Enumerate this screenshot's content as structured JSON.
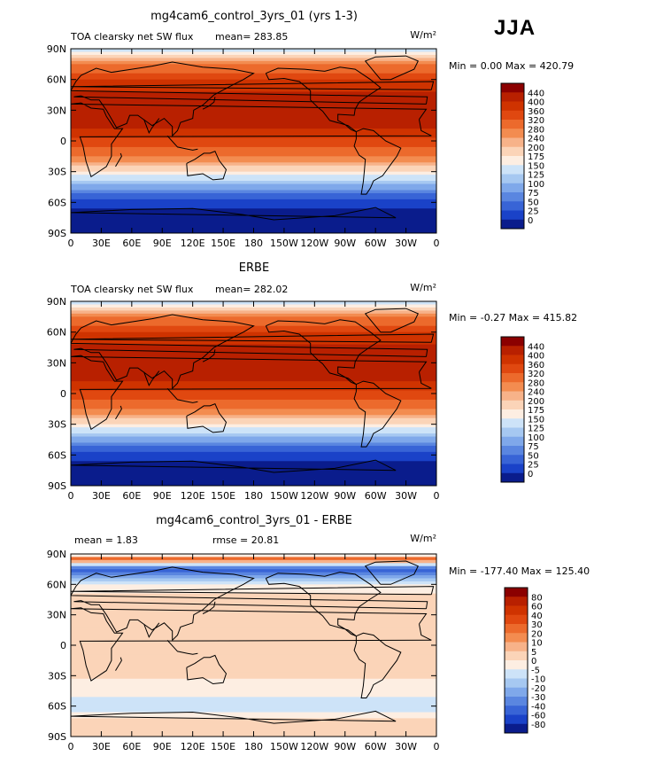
{
  "season": "JJA",
  "chart_data": [
    {
      "type": "heatmap",
      "title": "mg4cam6_control_3yrs_01 (yrs 1-3)",
      "left_label": "TOA clearsky net SW flux",
      "mean_text": "mean= 283.85",
      "units": "W/m²",
      "minmax_text": "Min =    0.00 Max = 420.79",
      "lat_ticks": [
        "90N",
        "60N",
        "30N",
        "0",
        "30S",
        "60S",
        "90S"
      ],
      "lon_ticks": [
        "0",
        "30E",
        "60E",
        "90E",
        "120E",
        "150E",
        "180",
        "150W",
        "120W",
        "90W",
        "60W",
        "30W",
        "0"
      ],
      "colorbar_labels": [
        "440",
        "400",
        "360",
        "320",
        "280",
        "240",
        "200",
        "175",
        "150",
        "125",
        "100",
        "75",
        "50",
        "25",
        "0"
      ],
      "colorbar_colors": [
        "#8b0000",
        "#b82000",
        "#cf3300",
        "#e04810",
        "#ec6a2c",
        "#f38c50",
        "#f7b289",
        "#fbd4b8",
        "#fdeee2",
        "#cde3f8",
        "#a6c8f1",
        "#7fa8ea",
        "#5a86e0",
        "#3864d6",
        "#1a42c8",
        "#0a1c8c"
      ],
      "zonal_mean": [
        {
          "lat": 90,
          "value": 150
        },
        {
          "lat": 82,
          "value": 240
        },
        {
          "lat": 75,
          "value": 300
        },
        {
          "lat": 60,
          "value": 360
        },
        {
          "lat": 45,
          "value": 390
        },
        {
          "lat": 30,
          "value": 405
        },
        {
          "lat": 15,
          "value": 390
        },
        {
          "lat": 0,
          "value": 350
        },
        {
          "lat": -15,
          "value": 300
        },
        {
          "lat": -30,
          "value": 220
        },
        {
          "lat": -45,
          "value": 120
        },
        {
          "lat": -60,
          "value": 40
        },
        {
          "lat": -75,
          "value": 5
        },
        {
          "lat": -90,
          "value": 0
        }
      ]
    },
    {
      "type": "heatmap",
      "title": "ERBE",
      "left_label": "TOA clearsky net SW flux",
      "mean_text": "mean= 282.02",
      "units": "W/m²",
      "minmax_text": "Min =  -0.27 Max = 415.82",
      "lat_ticks": [
        "90N",
        "60N",
        "30N",
        "0",
        "30S",
        "60S",
        "90S"
      ],
      "lon_ticks": [
        "0",
        "30E",
        "60E",
        "90E",
        "120E",
        "150E",
        "180",
        "150W",
        "120W",
        "90W",
        "60W",
        "30W",
        "0"
      ],
      "colorbar_labels": [
        "440",
        "400",
        "360",
        "320",
        "280",
        "240",
        "200",
        "175",
        "150",
        "125",
        "100",
        "75",
        "50",
        "25",
        "0"
      ],
      "colorbar_colors": [
        "#8b0000",
        "#b82000",
        "#cf3300",
        "#e04810",
        "#ec6a2c",
        "#f38c50",
        "#f7b289",
        "#fbd4b8",
        "#fdeee2",
        "#cde3f8",
        "#a6c8f1",
        "#7fa8ea",
        "#5a86e0",
        "#3864d6",
        "#1a42c8",
        "#0a1c8c"
      ],
      "zonal_mean": [
        {
          "lat": 90,
          "value": 175
        },
        {
          "lat": 82,
          "value": 250
        },
        {
          "lat": 75,
          "value": 300
        },
        {
          "lat": 60,
          "value": 360
        },
        {
          "lat": 45,
          "value": 390
        },
        {
          "lat": 30,
          "value": 405
        },
        {
          "lat": 15,
          "value": 390
        },
        {
          "lat": 0,
          "value": 350
        },
        {
          "lat": -15,
          "value": 300
        },
        {
          "lat": -30,
          "value": 220
        },
        {
          "lat": -45,
          "value": 120
        },
        {
          "lat": -60,
          "value": 40
        },
        {
          "lat": -75,
          "value": 5
        },
        {
          "lat": -90,
          "value": 0
        }
      ]
    },
    {
      "type": "heatmap",
      "title": "mg4cam6_control_3yrs_01 - ERBE",
      "mean_text": "mean =    1.83",
      "rmse_text": "rmse =   20.81",
      "units": "W/m²",
      "minmax_text": "Min = -177.40 Max = 125.40",
      "lat_ticks": [
        "90N",
        "60N",
        "30N",
        "0",
        "30S",
        "60S",
        "90S"
      ],
      "lon_ticks": [
        "0",
        "30E",
        "60E",
        "90E",
        "120E",
        "150E",
        "180",
        "150W",
        "120W",
        "90W",
        "60W",
        "30W",
        "0"
      ],
      "colorbar_labels": [
        "80",
        "60",
        "40",
        "30",
        "20",
        "10",
        "5",
        "0",
        "-5",
        "-10",
        "-20",
        "-30",
        "-40",
        "-60",
        "-80"
      ],
      "colorbar_colors": [
        "#8b0000",
        "#b82000",
        "#cf3300",
        "#e04810",
        "#ec6a2c",
        "#f38c50",
        "#f7b289",
        "#fbd4b8",
        "#fdeee2",
        "#cde3f8",
        "#a6c8f1",
        "#7fa8ea",
        "#5a86e0",
        "#3864d6",
        "#1a42c8",
        "#0a1c8c"
      ],
      "zonal_mean": [
        {
          "lat": 90,
          "value": -20
        },
        {
          "lat": 85,
          "value": 40
        },
        {
          "lat": 75,
          "value": -60
        },
        {
          "lat": 60,
          "value": -10
        },
        {
          "lat": 45,
          "value": 5
        },
        {
          "lat": 30,
          "value": 5
        },
        {
          "lat": 15,
          "value": 3
        },
        {
          "lat": 0,
          "value": 2
        },
        {
          "lat": -15,
          "value": 2
        },
        {
          "lat": -30,
          "value": 2
        },
        {
          "lat": -45,
          "value": -5
        },
        {
          "lat": -60,
          "value": -20
        },
        {
          "lat": -75,
          "value": 5
        },
        {
          "lat": -90,
          "value": 5
        }
      ]
    }
  ]
}
